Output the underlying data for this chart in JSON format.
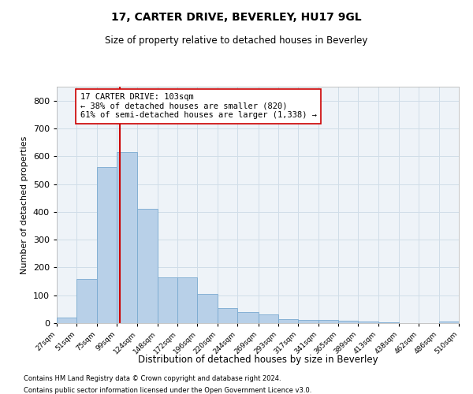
{
  "title": "17, CARTER DRIVE, BEVERLEY, HU17 9GL",
  "subtitle": "Size of property relative to detached houses in Beverley",
  "xlabel": "Distribution of detached houses by size in Beverley",
  "ylabel": "Number of detached properties",
  "footnote1": "Contains HM Land Registry data © Crown copyright and database right 2024.",
  "footnote2": "Contains public sector information licensed under the Open Government Licence v3.0.",
  "bar_color": "#b8d0e8",
  "bar_edgecolor": "#7aaad0",
  "grid_color": "#d0dde8",
  "property_line_color": "#cc0000",
  "property_value": 103,
  "annotation_line1": "17 CARTER DRIVE: 103sqm",
  "annotation_line2": "← 38% of detached houses are smaller (820)",
  "annotation_line3": "61% of semi-detached houses are larger (1,338) →",
  "bin_edges": [
    27,
    51,
    75,
    99,
    124,
    148,
    172,
    196,
    220,
    244,
    269,
    293,
    317,
    341,
    365,
    389,
    413,
    438,
    462,
    486,
    510
  ],
  "bar_heights": [
    20,
    160,
    560,
    615,
    410,
    165,
    165,
    105,
    55,
    40,
    30,
    15,
    10,
    10,
    8,
    5,
    3,
    1,
    0,
    5
  ],
  "ylim": [
    0,
    850
  ],
  "yticks": [
    0,
    100,
    200,
    300,
    400,
    500,
    600,
    700,
    800
  ],
  "background_color": "#ffffff",
  "plot_bg_color": "#eef3f8"
}
